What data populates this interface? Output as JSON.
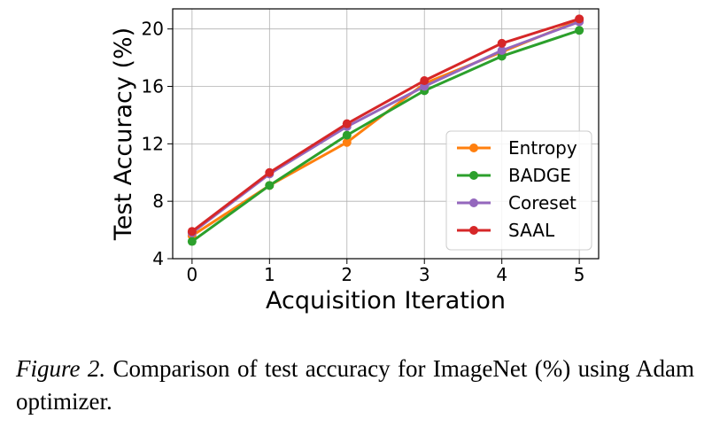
{
  "chart_data": {
    "type": "line",
    "xlabel": "Acquisition Iteration",
    "ylabel": "Test Accuracy (%)",
    "x": [
      0,
      1,
      2,
      3,
      4,
      5
    ],
    "xticks": [
      "0",
      "1",
      "2",
      "3",
      "4",
      "5"
    ],
    "yticks": [
      "4",
      "8",
      "12",
      "16",
      "20"
    ],
    "xlim": [
      -0.25,
      5.25
    ],
    "ylim": [
      4,
      21.4
    ],
    "grid": true,
    "legend_position": "lower-right",
    "series": [
      {
        "name": "Entropy",
        "color": "#ff7f0e",
        "values": [
          5.6,
          9.1,
          12.1,
          16.2,
          18.4,
          20.6
        ]
      },
      {
        "name": "BADGE",
        "color": "#2ca02c",
        "values": [
          5.2,
          9.1,
          12.6,
          15.7,
          18.1,
          19.9
        ]
      },
      {
        "name": "Coreset",
        "color": "#9467bd",
        "values": [
          5.8,
          9.9,
          13.2,
          16.0,
          18.5,
          20.5
        ]
      },
      {
        "name": "SAAL",
        "color": "#d62728",
        "values": [
          5.9,
          10.0,
          13.4,
          16.4,
          19.0,
          20.7
        ]
      }
    ]
  },
  "caption": {
    "label": "Figure 2.",
    "text": "Comparison of test accuracy for ImageNet (%) using Adam optimizer."
  }
}
